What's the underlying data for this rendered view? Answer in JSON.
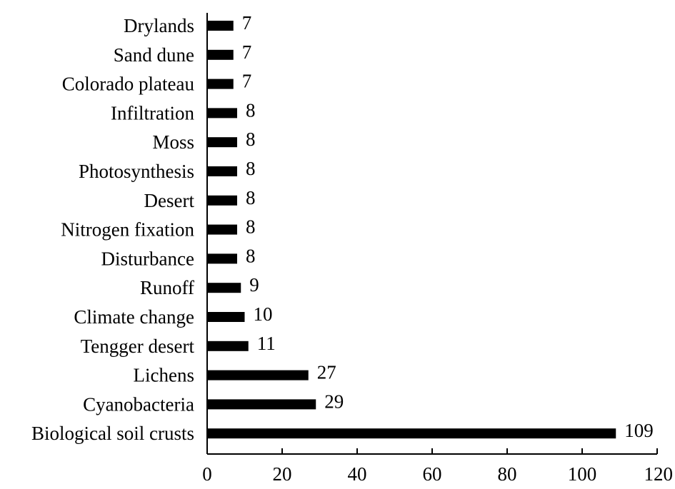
{
  "chart_data": {
    "type": "bar",
    "orientation": "horizontal",
    "categories": [
      "Drylands",
      "Sand dune",
      "Colorado plateau",
      "Infiltration",
      "Moss",
      "Photosynthesis",
      "Desert",
      "Nitrogen fixation",
      "Disturbance",
      "Runoff",
      "Climate change",
      "Tengger desert",
      "Lichens",
      "Cyanobacteria",
      "Biological soil crusts"
    ],
    "values": [
      7,
      7,
      7,
      8,
      8,
      8,
      8,
      8,
      8,
      9,
      10,
      11,
      27,
      29,
      109
    ],
    "xlim": [
      0,
      120
    ],
    "xticks": [
      0,
      20,
      40,
      60,
      80,
      100,
      120
    ],
    "title": "",
    "xlabel": "",
    "ylabel": "",
    "grid": false,
    "bar_color": "#000000"
  }
}
